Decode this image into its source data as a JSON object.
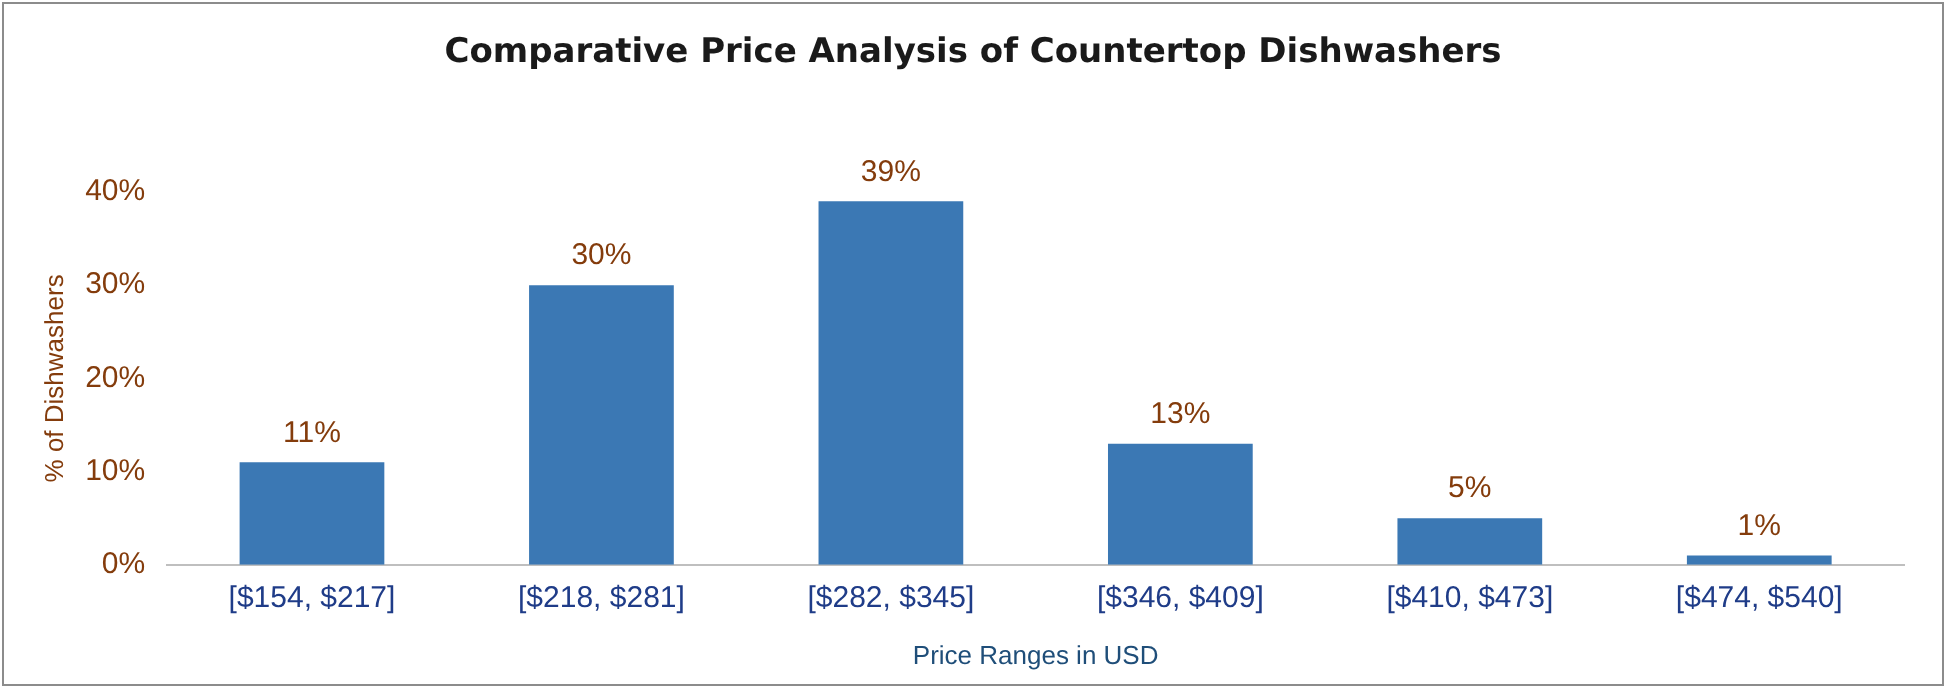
{
  "chart_data": {
    "type": "bar",
    "title": "Comparative Price Analysis of Countertop Dishwashers",
    "xlabel": "Price Ranges in USD",
    "ylabel": "% of Dishwashers",
    "categories": [
      "[$154, $217]",
      "[$218, $281]",
      "[$282, $345]",
      "[$346, $409]",
      "[$410, $473]",
      "[$474, $540]"
    ],
    "values": [
      11,
      30,
      39,
      13,
      5,
      1
    ],
    "value_labels": [
      "11%",
      "30%",
      "39%",
      "13%",
      "5%",
      "1%"
    ],
    "color": "#3b78b4",
    "ylim": [
      0,
      40
    ],
    "yticks": [
      {
        "value": 0,
        "label": "0%"
      },
      {
        "value": 10,
        "label": "10%"
      },
      {
        "value": 20,
        "label": "20%"
      },
      {
        "value": 30,
        "label": "30%"
      },
      {
        "value": 40,
        "label": "40%"
      }
    ],
    "grid": false,
    "legend": false
  }
}
